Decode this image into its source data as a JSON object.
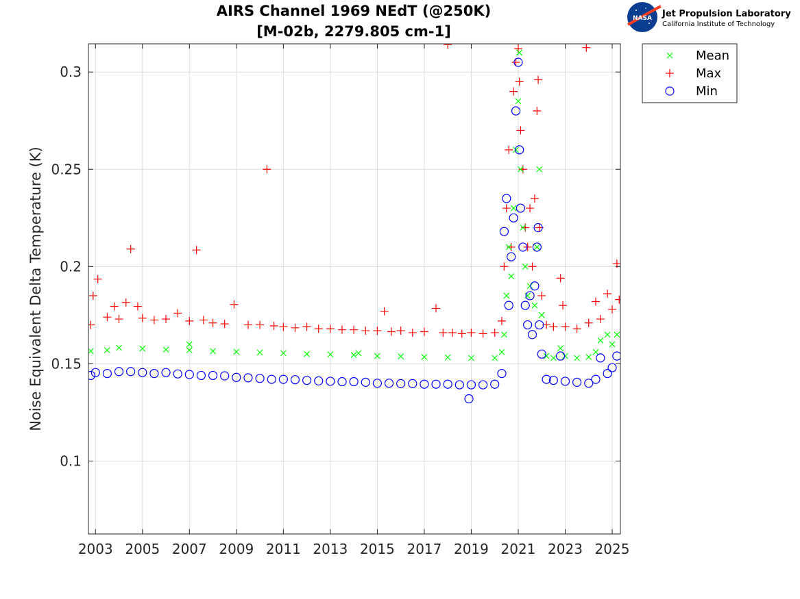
{
  "header": {
    "title_line1": "AIRS Channel 1969 NEdT (@250K)",
    "title_line2": "[M-02b, 2279.805 cm-1]"
  },
  "logo": {
    "agency_text": "NASA",
    "lab_name": "Jet Propulsion Laboratory",
    "lab_sub": "California Institute of Technology",
    "colors": {
      "globe": "#0b3d91",
      "swoosh": "#fc3d21"
    }
  },
  "chart_data": {
    "type": "scatter",
    "title": "AIRS Channel 1969 NEdT (@250K) [M-02b, 2279.805 cm-1]",
    "xlabel": "",
    "ylabel": "Noise Equivalent Delta Temperature (K)",
    "xlim": [
      2002.7,
      2025.35
    ],
    "ylim": [
      0.0625,
      0.3145
    ],
    "xticks": [
      2003,
      2005,
      2007,
      2009,
      2011,
      2013,
      2015,
      2017,
      2019,
      2021,
      2023,
      2025
    ],
    "yticks": [
      0.1,
      0.15,
      0.2,
      0.25,
      0.3
    ],
    "ytick_labels": [
      "0.1",
      "0.15",
      "0.2",
      "0.25",
      "0.3"
    ],
    "grid": true,
    "legend": {
      "placement": "outside-top-right"
    },
    "series": [
      {
        "name": "Mean",
        "marker": "x",
        "color": "#00ff00",
        "points": [
          [
            2002.8,
            0.1565
          ],
          [
            2003.5,
            0.157
          ],
          [
            2004.0,
            0.1582
          ],
          [
            2005.0,
            0.1578
          ],
          [
            2006.0,
            0.1573
          ],
          [
            2007.0,
            0.157
          ],
          [
            2008.0,
            0.1565
          ],
          [
            2009.0,
            0.1562
          ],
          [
            2010.0,
            0.1558
          ],
          [
            2011.0,
            0.1555
          ],
          [
            2012.0,
            0.155
          ],
          [
            2013.0,
            0.1548
          ],
          [
            2014.0,
            0.1545
          ],
          [
            2015.0,
            0.154
          ],
          [
            2016.0,
            0.1538
          ],
          [
            2017.0,
            0.1535
          ],
          [
            2018.0,
            0.1533
          ],
          [
            2019.0,
            0.153
          ],
          [
            2020.0,
            0.153
          ],
          [
            2020.3,
            0.156
          ],
          [
            2020.4,
            0.165
          ],
          [
            2020.5,
            0.185
          ],
          [
            2020.6,
            0.21
          ],
          [
            2020.7,
            0.195
          ],
          [
            2020.8,
            0.23
          ],
          [
            2020.9,
            0.26
          ],
          [
            2021.0,
            0.285
          ],
          [
            2021.05,
            0.31
          ],
          [
            2021.1,
            0.25
          ],
          [
            2021.2,
            0.22
          ],
          [
            2021.3,
            0.2
          ],
          [
            2021.4,
            0.185
          ],
          [
            2021.5,
            0.19
          ],
          [
            2021.7,
            0.18
          ],
          [
            2021.8,
            0.21
          ],
          [
            2021.9,
            0.25
          ],
          [
            2022.0,
            0.175
          ],
          [
            2022.2,
            0.154
          ],
          [
            2022.5,
            0.153
          ],
          [
            2022.8,
            0.158
          ],
          [
            2023.0,
            0.154
          ],
          [
            2023.5,
            0.153
          ],
          [
            2024.0,
            0.1535
          ],
          [
            2024.3,
            0.156
          ],
          [
            2024.5,
            0.162
          ],
          [
            2024.8,
            0.165
          ],
          [
            2025.0,
            0.16
          ],
          [
            2025.2,
            0.165
          ],
          [
            2007.0,
            0.16
          ],
          [
            2014.2,
            0.1555
          ]
        ]
      },
      {
        "name": "Max",
        "marker": "+",
        "color": "#ff0000",
        "points": [
          [
            2002.8,
            0.17
          ],
          [
            2002.9,
            0.185
          ],
          [
            2003.1,
            0.1935
          ],
          [
            2003.5,
            0.174
          ],
          [
            2003.8,
            0.1795
          ],
          [
            2004.0,
            0.173
          ],
          [
            2004.3,
            0.1815
          ],
          [
            2004.5,
            0.209
          ],
          [
            2004.8,
            0.1795
          ],
          [
            2005.0,
            0.1735
          ],
          [
            2005.5,
            0.1725
          ],
          [
            2006.0,
            0.173
          ],
          [
            2006.5,
            0.176
          ],
          [
            2007.0,
            0.172
          ],
          [
            2007.3,
            0.2085
          ],
          [
            2007.6,
            0.1725
          ],
          [
            2008.0,
            0.171
          ],
          [
            2008.5,
            0.1705
          ],
          [
            2008.9,
            0.1805
          ],
          [
            2009.5,
            0.17
          ],
          [
            2010.0,
            0.17
          ],
          [
            2010.3,
            0.25
          ],
          [
            2010.6,
            0.1695
          ],
          [
            2011.0,
            0.169
          ],
          [
            2011.5,
            0.1685
          ],
          [
            2012.0,
            0.169
          ],
          [
            2012.5,
            0.168
          ],
          [
            2013.0,
            0.168
          ],
          [
            2013.5,
            0.1675
          ],
          [
            2014.0,
            0.1675
          ],
          [
            2014.5,
            0.167
          ],
          [
            2015.0,
            0.167
          ],
          [
            2015.3,
            0.177
          ],
          [
            2015.6,
            0.1665
          ],
          [
            2016.0,
            0.167
          ],
          [
            2016.5,
            0.166
          ],
          [
            2017.0,
            0.1665
          ],
          [
            2017.5,
            0.1785
          ],
          [
            2017.8,
            0.166
          ],
          [
            2018.0,
            0.314
          ],
          [
            2018.2,
            0.166
          ],
          [
            2018.6,
            0.1655
          ],
          [
            2019.0,
            0.166
          ],
          [
            2019.5,
            0.1655
          ],
          [
            2020.0,
            0.166
          ],
          [
            2020.3,
            0.172
          ],
          [
            2020.4,
            0.2
          ],
          [
            2020.5,
            0.23
          ],
          [
            2020.6,
            0.26
          ],
          [
            2020.7,
            0.21
          ],
          [
            2020.8,
            0.29
          ],
          [
            2020.9,
            0.305
          ],
          [
            2021.0,
            0.312
          ],
          [
            2021.05,
            0.295
          ],
          [
            2021.1,
            0.27
          ],
          [
            2021.2,
            0.25
          ],
          [
            2021.3,
            0.22
          ],
          [
            2021.4,
            0.21
          ],
          [
            2021.5,
            0.23
          ],
          [
            2021.6,
            0.2
          ],
          [
            2021.7,
            0.235
          ],
          [
            2021.8,
            0.28
          ],
          [
            2021.85,
            0.296
          ],
          [
            2021.9,
            0.22
          ],
          [
            2022.0,
            0.185
          ],
          [
            2022.2,
            0.17
          ],
          [
            2022.5,
            0.169
          ],
          [
            2022.8,
            0.194
          ],
          [
            2022.9,
            0.18
          ],
          [
            2023.0,
            0.169
          ],
          [
            2023.5,
            0.168
          ],
          [
            2023.9,
            0.3125
          ],
          [
            2024.0,
            0.171
          ],
          [
            2024.3,
            0.182
          ],
          [
            2024.5,
            0.173
          ],
          [
            2024.8,
            0.186
          ],
          [
            2025.0,
            0.178
          ],
          [
            2025.2,
            0.2015
          ],
          [
            2025.3,
            0.183
          ]
        ]
      },
      {
        "name": "Min",
        "marker": "o",
        "color": "#0000ff",
        "points": [
          [
            2002.8,
            0.144
          ],
          [
            2003.0,
            0.1455
          ],
          [
            2003.5,
            0.145
          ],
          [
            2004.0,
            0.146
          ],
          [
            2004.5,
            0.146
          ],
          [
            2005.0,
            0.1455
          ],
          [
            2005.5,
            0.145
          ],
          [
            2006.0,
            0.1455
          ],
          [
            2006.5,
            0.1448
          ],
          [
            2007.0,
            0.1445
          ],
          [
            2007.5,
            0.144
          ],
          [
            2008.0,
            0.144
          ],
          [
            2008.5,
            0.1438
          ],
          [
            2009.0,
            0.143
          ],
          [
            2009.5,
            0.1428
          ],
          [
            2010.0,
            0.1425
          ],
          [
            2010.5,
            0.142
          ],
          [
            2011.0,
            0.142
          ],
          [
            2011.5,
            0.1418
          ],
          [
            2012.0,
            0.1415
          ],
          [
            2012.5,
            0.1412
          ],
          [
            2013.0,
            0.141
          ],
          [
            2013.5,
            0.1408
          ],
          [
            2014.0,
            0.1408
          ],
          [
            2014.5,
            0.1405
          ],
          [
            2015.0,
            0.14
          ],
          [
            2015.5,
            0.14
          ],
          [
            2016.0,
            0.1398
          ],
          [
            2016.5,
            0.1398
          ],
          [
            2017.0,
            0.1395
          ],
          [
            2017.5,
            0.1395
          ],
          [
            2018.0,
            0.1395
          ],
          [
            2018.5,
            0.1392
          ],
          [
            2018.9,
            0.132
          ],
          [
            2019.0,
            0.1392
          ],
          [
            2019.5,
            0.1392
          ],
          [
            2020.0,
            0.1395
          ],
          [
            2020.3,
            0.145
          ],
          [
            2020.4,
            0.218
          ],
          [
            2020.5,
            0.235
          ],
          [
            2020.6,
            0.18
          ],
          [
            2020.7,
            0.205
          ],
          [
            2020.8,
            0.225
          ],
          [
            2020.9,
            0.28
          ],
          [
            2021.0,
            0.305
          ],
          [
            2021.05,
            0.26
          ],
          [
            2021.1,
            0.23
          ],
          [
            2021.2,
            0.21
          ],
          [
            2021.3,
            0.18
          ],
          [
            2021.4,
            0.17
          ],
          [
            2021.5,
            0.185
          ],
          [
            2021.6,
            0.165
          ],
          [
            2021.7,
            0.19
          ],
          [
            2021.8,
            0.21
          ],
          [
            2021.85,
            0.22
          ],
          [
            2021.9,
            0.17
          ],
          [
            2022.0,
            0.155
          ],
          [
            2022.2,
            0.142
          ],
          [
            2022.5,
            0.1415
          ],
          [
            2022.8,
            0.154
          ],
          [
            2023.0,
            0.141
          ],
          [
            2023.5,
            0.1405
          ],
          [
            2024.0,
            0.14
          ],
          [
            2024.3,
            0.142
          ],
          [
            2024.5,
            0.153
          ],
          [
            2024.8,
            0.145
          ],
          [
            2025.0,
            0.148
          ],
          [
            2025.2,
            0.154
          ]
        ]
      }
    ]
  }
}
